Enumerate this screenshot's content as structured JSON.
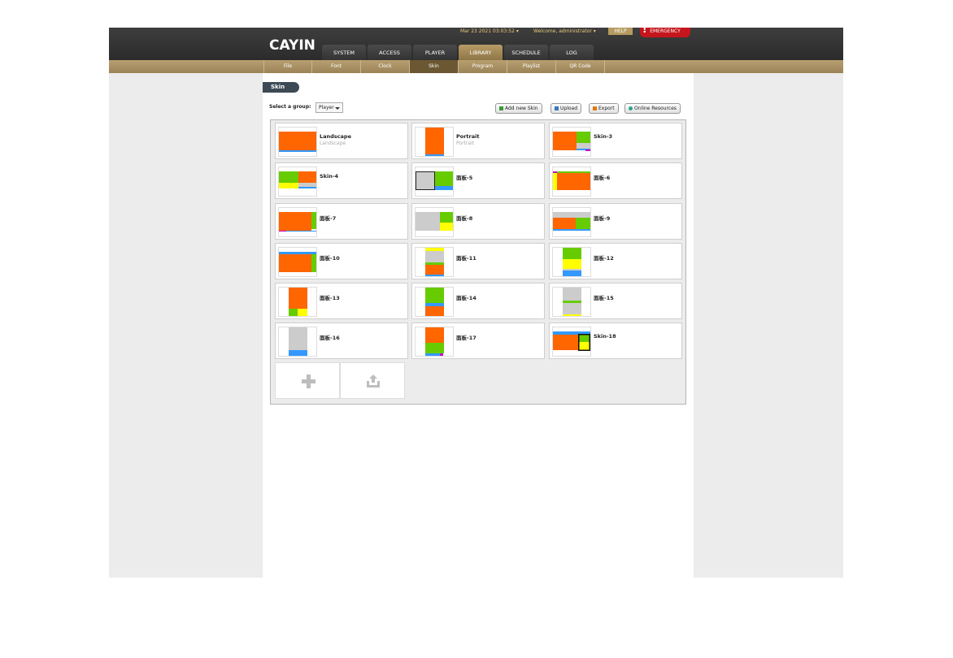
{
  "header": {
    "logo": "CAYIN",
    "datetime": "Mar 23 2021 03:03:52",
    "welcome": "Welcome, administrator",
    "help_label": "HELP",
    "emergency_label": "EMERGENCY"
  },
  "main_tabs": [
    {
      "label": "SYSTEM",
      "active": false
    },
    {
      "label": "ACCESS",
      "active": false
    },
    {
      "label": "PLAYER",
      "active": false
    },
    {
      "label": "LIBRARY",
      "active": true
    },
    {
      "label": "SCHEDULE",
      "active": false
    },
    {
      "label": "LOG",
      "active": false
    }
  ],
  "sub_tabs": [
    {
      "label": "File",
      "active": false
    },
    {
      "label": "Font",
      "active": false
    },
    {
      "label": "Clock",
      "active": false
    },
    {
      "label": "Skin",
      "active": true
    },
    {
      "label": "Program",
      "active": false
    },
    {
      "label": "Playlist",
      "active": false
    },
    {
      "label": "QR Code",
      "active": false
    }
  ],
  "page": {
    "title": "Skin",
    "group_label": "Select a group:",
    "group_value": "Player"
  },
  "toolbar": {
    "add_label": "Add new Skin",
    "upload_label": "Upload",
    "export_label": "Export",
    "online_label": "Online Resources"
  },
  "skins": [
    {
      "name": "Landscape",
      "subtitle": "Landscape"
    },
    {
      "name": "Portrait",
      "subtitle": "Portrait"
    },
    {
      "name": "Skin-3",
      "subtitle": ""
    },
    {
      "name": "Skin-4",
      "subtitle": ""
    },
    {
      "name": "面板-5",
      "subtitle": ""
    },
    {
      "name": "面板-6",
      "subtitle": ""
    },
    {
      "name": "面板-7",
      "subtitle": ""
    },
    {
      "name": "面板-8",
      "subtitle": ""
    },
    {
      "name": "面板-9",
      "subtitle": ""
    },
    {
      "name": "面板-10",
      "subtitle": ""
    },
    {
      "name": "面板-11",
      "subtitle": ""
    },
    {
      "name": "面板-12",
      "subtitle": ""
    },
    {
      "name": "面板-13",
      "subtitle": ""
    },
    {
      "name": "面板-14",
      "subtitle": ""
    },
    {
      "name": "面板-15",
      "subtitle": ""
    },
    {
      "name": "面板-16",
      "subtitle": ""
    },
    {
      "name": "面板-17",
      "subtitle": ""
    },
    {
      "name": "Skin-18",
      "subtitle": ""
    }
  ],
  "colors": {
    "orange": "#ff6600",
    "green": "#66cc00",
    "yellow": "#ffff00",
    "blue": "#3399ff",
    "grey": "#cccccc",
    "magenta": "#cc00cc",
    "accent": "#b79c66"
  },
  "icons": {
    "add_tile": "plus-icon",
    "upload_tile": "upload-icon"
  }
}
